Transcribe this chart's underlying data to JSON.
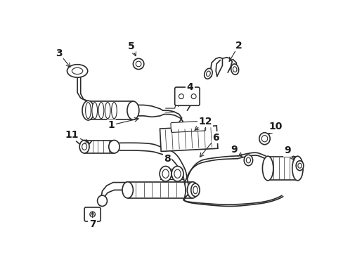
{
  "background_color": "#ffffff",
  "line_color": "#2a2a2a",
  "figsize": [
    4.89,
    3.6
  ],
  "dpi": 100,
  "parts": {
    "label_fontsize": 10,
    "arrow_lw": 0.8
  }
}
